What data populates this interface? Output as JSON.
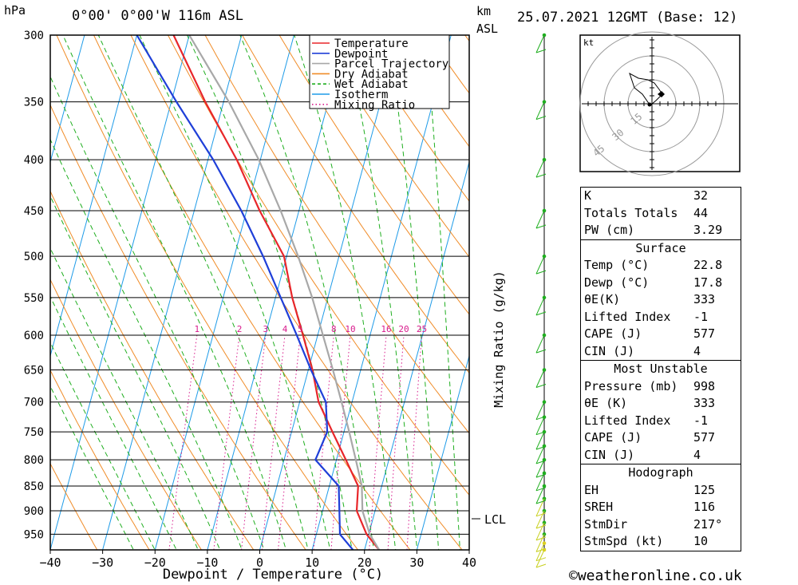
{
  "header": {
    "unit_hpa": "hPa",
    "location": "0°00' 0°00'W 116m ASL",
    "unit_km": "km",
    "unit_asl": "ASL",
    "datetime": "25.07.2021 12GMT (Base: 12)"
  },
  "footer": {
    "copyright": "©weatheronline.co.uk"
  },
  "lcl_label": "LCL",
  "hodograph": {
    "unit": "kt",
    "ring_labels": [
      "15",
      "30",
      "45"
    ]
  },
  "indices": {
    "rows": [
      {
        "label": "K",
        "value": "32"
      },
      {
        "label": "Totals Totals",
        "value": "44"
      },
      {
        "label": "PW (cm)",
        "value": "3.29"
      }
    ]
  },
  "surface": {
    "title": "Surface",
    "rows": [
      {
        "label": "Temp (°C)",
        "value": "22.8"
      },
      {
        "label": "Dewp (°C)",
        "value": "17.8"
      },
      {
        "label": "θE(K)",
        "value": "333"
      },
      {
        "label": "Lifted Index",
        "value": "-1"
      },
      {
        "label": "CAPE (J)",
        "value": "577"
      },
      {
        "label": "CIN (J)",
        "value": "4"
      }
    ]
  },
  "most_unstable": {
    "title": "Most Unstable",
    "rows": [
      {
        "label": "Pressure (mb)",
        "value": "998"
      },
      {
        "label": "θE (K)",
        "value": "333"
      },
      {
        "label": "Lifted Index",
        "value": "-1"
      },
      {
        "label": "CAPE (J)",
        "value": "577"
      },
      {
        "label": "CIN (J)",
        "value": "4"
      }
    ]
  },
  "hodograph_table": {
    "title": "Hodograph",
    "rows": [
      {
        "label": "EH",
        "value": "125"
      },
      {
        "label": "SREH",
        "value": "116"
      },
      {
        "label": "StmDir",
        "value": "217°"
      },
      {
        "label": "StmSpd (kt)",
        "value": "10"
      }
    ]
  },
  "chart_data": {
    "type": "line",
    "title": "",
    "xlabel": "Dewpoint / Temperature (°C)",
    "ylabel": "Mixing Ratio (g/kg)",
    "x_ticks": [
      -40,
      -30,
      -20,
      -10,
      0,
      10,
      20,
      30,
      40
    ],
    "x_tick_labels": [
      "−40",
      "−30",
      "−20",
      "−10",
      "0",
      "10",
      "20",
      "30",
      "40"
    ],
    "y_ticks": [
      300,
      350,
      400,
      450,
      500,
      550,
      600,
      650,
      700,
      750,
      800,
      850,
      900,
      950
    ],
    "mixing_ratio_labels": [
      "1",
      "2",
      "3",
      "4",
      "5",
      "8",
      "10",
      "16",
      "20",
      "25"
    ],
    "legend": {
      "placement": "top-right",
      "items": [
        {
          "name": "Temperature",
          "color": "#e8262a",
          "style": "solid"
        },
        {
          "name": "Dewpoint",
          "color": "#1f3fd8",
          "style": "solid"
        },
        {
          "name": "Parcel Trajectory",
          "color": "#a8a8a8",
          "style": "solid"
        },
        {
          "name": "Dry Adiabat",
          "color": "#f08c28",
          "style": "solid"
        },
        {
          "name": "Wet Adiabat",
          "color": "#1fae1f",
          "style": "dashed"
        },
        {
          "name": "Isotherm",
          "color": "#1e9be8",
          "style": "solid"
        },
        {
          "name": "Mixing Ratio",
          "color": "#d81b8c",
          "style": "dotted"
        }
      ]
    },
    "series": [
      {
        "name": "Temperature",
        "color": "#e8262a",
        "points": [
          [
            985,
            22.8
          ],
          [
            950,
            19.6
          ],
          [
            900,
            16.5
          ],
          [
            850,
            15.5
          ],
          [
            800,
            11.8
          ],
          [
            750,
            7.8
          ],
          [
            700,
            3.6
          ],
          [
            650,
            0.8
          ],
          [
            600,
            -2.8
          ],
          [
            550,
            -6.8
          ],
          [
            500,
            -10.5
          ],
          [
            450,
            -17.5
          ],
          [
            400,
            -24.5
          ],
          [
            350,
            -33.5
          ],
          [
            300,
            -43
          ]
        ]
      },
      {
        "name": "Dewpoint",
        "color": "#1f3fd8",
        "points": [
          [
            985,
            17.8
          ],
          [
            950,
            14.5
          ],
          [
            900,
            13.2
          ],
          [
            850,
            11.8
          ],
          [
            800,
            6.0
          ],
          [
            750,
            6.8
          ],
          [
            700,
            5.0
          ],
          [
            650,
            0.5
          ],
          [
            600,
            -4.0
          ],
          [
            550,
            -9.0
          ],
          [
            500,
            -14.5
          ],
          [
            450,
            -21.0
          ],
          [
            400,
            -29.0
          ],
          [
            350,
            -39.0
          ],
          [
            300,
            -50
          ]
        ]
      },
      {
        "name": "Parcel Trajectory",
        "color": "#a8a8a8",
        "points": [
          [
            985,
            22.8
          ],
          [
            950,
            20.2
          ],
          [
            900,
            17.6
          ],
          [
            850,
            16.2
          ],
          [
            800,
            13.7
          ],
          [
            750,
            11.0
          ],
          [
            700,
            8.0
          ],
          [
            650,
            4.7
          ],
          [
            600,
            1.0
          ],
          [
            550,
            -3.0
          ],
          [
            500,
            -7.8
          ],
          [
            450,
            -13.5
          ],
          [
            400,
            -20.3
          ],
          [
            350,
            -29.0
          ],
          [
            300,
            -40.0
          ]
        ]
      }
    ],
    "xlim": [
      -40,
      40
    ],
    "ylim": [
      985,
      300
    ]
  }
}
